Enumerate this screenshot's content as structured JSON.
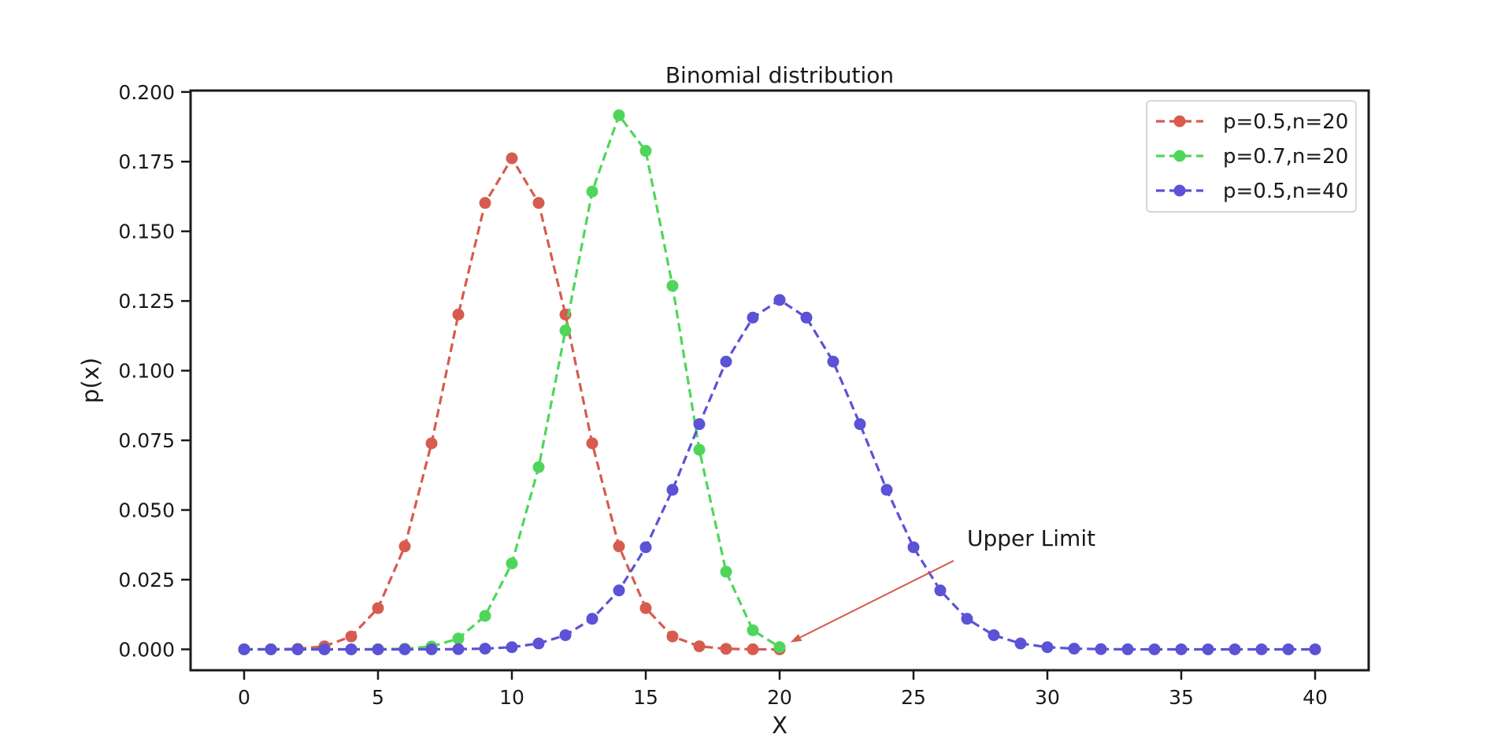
{
  "chart_data": {
    "type": "line",
    "title": "Binomial distribution",
    "xlabel": "X",
    "ylabel": "p(x)",
    "xlim": [
      -2,
      42
    ],
    "ylim": [
      -0.0075,
      0.2005
    ],
    "xticks": [
      0,
      5,
      10,
      15,
      20,
      25,
      30,
      35,
      40
    ],
    "yticks": [
      0.0,
      0.025,
      0.05,
      0.075,
      0.1,
      0.125,
      0.15,
      0.175,
      0.2
    ],
    "xtick_labels": [
      "0",
      "5",
      "10",
      "15",
      "20",
      "25",
      "30",
      "35",
      "40"
    ],
    "ytick_labels": [
      "0.000",
      "0.025",
      "0.050",
      "0.075",
      "0.100",
      "0.125",
      "0.150",
      "0.175",
      "0.200"
    ],
    "grid": false,
    "legend_position": "top-right",
    "series": [
      {
        "name": "p=0.5,n=20",
        "color": "#d65c4f",
        "x": [
          0,
          1,
          2,
          3,
          4,
          5,
          6,
          7,
          8,
          9,
          10,
          11,
          12,
          13,
          14,
          15,
          16,
          17,
          18,
          19,
          20
        ],
        "y": [
          1e-06,
          1.9e-05,
          0.000181,
          0.001087,
          0.004621,
          0.014786,
          0.036964,
          0.073929,
          0.120134,
          0.160179,
          0.176197,
          0.160179,
          0.120134,
          0.073929,
          0.036964,
          0.014786,
          0.004621,
          0.001087,
          0.000181,
          1.9e-05,
          1e-06
        ]
      },
      {
        "name": "p=0.7,n=20",
        "color": "#4fd65a",
        "x": [
          0,
          1,
          2,
          3,
          4,
          5,
          6,
          7,
          8,
          9,
          10,
          11,
          12,
          13,
          14,
          15,
          16,
          17,
          18,
          19,
          20
        ],
        "y": [
          0.0,
          0.0,
          0.0,
          0.0,
          6e-06,
          3.7e-05,
          0.000218,
          0.001018,
          0.003859,
          0.012007,
          0.030817,
          0.06537,
          0.114397,
          0.164262,
          0.191639,
          0.178863,
          0.130421,
          0.071604,
          0.027846,
          0.006839,
          0.000798
        ]
      },
      {
        "name": "p=0.5,n=40",
        "color": "#5b52d6",
        "x": [
          0,
          1,
          2,
          3,
          4,
          5,
          6,
          7,
          8,
          9,
          10,
          11,
          12,
          13,
          14,
          15,
          16,
          17,
          18,
          19,
          20,
          21,
          22,
          23,
          24,
          25,
          26,
          27,
          28,
          29,
          30,
          31,
          32,
          33,
          34,
          35,
          36,
          37,
          38,
          39,
          40
        ],
        "y": [
          0.0,
          0.0,
          0.0,
          0.0,
          0.0,
          0.0,
          3e-06,
          1.7e-05,
          7e-05,
          0.000249,
          0.000772,
          0.002105,
          0.005088,
          0.01096,
          0.021134,
          0.036629,
          0.057236,
          0.080803,
          0.103248,
          0.119023,
          0.125371,
          0.119023,
          0.103248,
          0.080803,
          0.057236,
          0.036629,
          0.021134,
          0.01096,
          0.005088,
          0.002105,
          0.000772,
          0.000249,
          7e-05,
          1.7e-05,
          3e-06,
          0.0,
          0.0,
          0.0,
          0.0,
          0.0,
          0.0
        ]
      }
    ],
    "annotations": [
      {
        "text": "Upper Limit",
        "text_x": 27,
        "text_y": 0.04,
        "arrow_to_x": 20.4,
        "arrow_to_y": 0.0025,
        "color": "#d65c4f"
      }
    ]
  }
}
